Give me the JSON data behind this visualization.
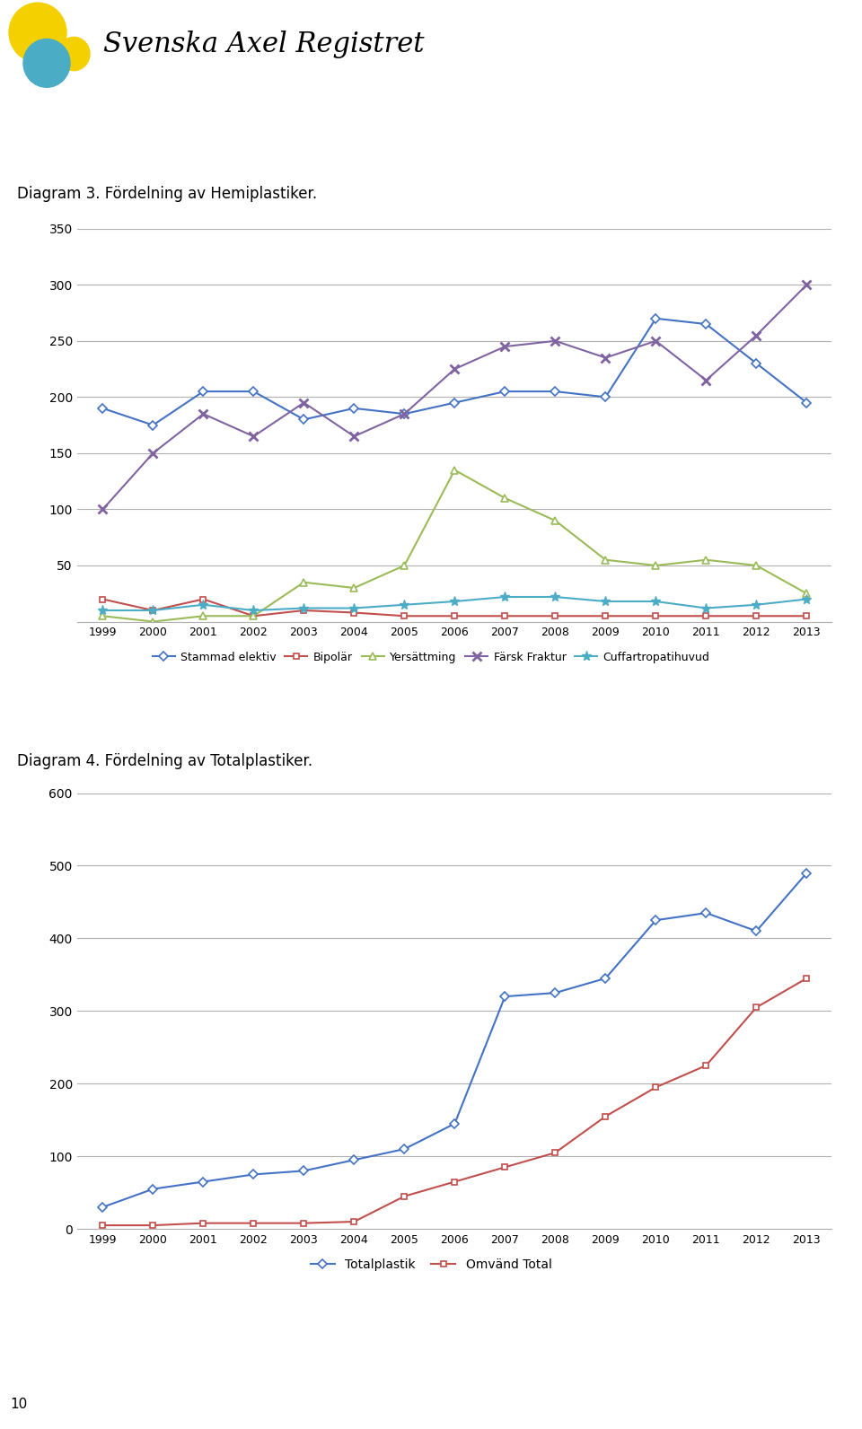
{
  "years": [
    1999,
    2000,
    2001,
    2002,
    2003,
    2004,
    2005,
    2006,
    2007,
    2008,
    2009,
    2010,
    2011,
    2012,
    2013
  ],
  "diagram3_title": "Diagram 3. Fördelning av Hemiplastiker.",
  "diagram4_title": "Diagram 4. Fördelning av Totalplastiker.",
  "header_text": "Svenska Axel Registret",
  "stammad_elektiv": [
    190,
    175,
    205,
    205,
    180,
    190,
    185,
    195,
    205,
    205,
    200,
    270,
    265,
    230,
    195
  ],
  "bipolar": [
    20,
    10,
    20,
    5,
    10,
    8,
    5,
    5,
    5,
    5,
    5,
    5,
    5,
    5,
    5
  ],
  "ytersattming": [
    5,
    0,
    5,
    5,
    35,
    30,
    50,
    135,
    110,
    90,
    55,
    50,
    55,
    50,
    25
  ],
  "farsk_fraktur": [
    100,
    150,
    185,
    165,
    195,
    165,
    185,
    225,
    245,
    250,
    235,
    250,
    215,
    255,
    300
  ],
  "cuffartropatihuvud": [
    10,
    10,
    15,
    10,
    12,
    12,
    15,
    18,
    22,
    22,
    18,
    18,
    12,
    15,
    20
  ],
  "totalplastik": [
    30,
    55,
    65,
    75,
    80,
    95,
    110,
    145,
    320,
    325,
    345,
    425,
    435,
    410,
    490
  ],
  "omvand_total": [
    5,
    5,
    8,
    8,
    8,
    10,
    45,
    65,
    85,
    105,
    155,
    195,
    225,
    305,
    345
  ],
  "stammad_color": "#4472c4",
  "bipolar_color": "#c0504d",
  "ytersattming_color": "#9bbb59",
  "farsk_color": "#8064a2",
  "cuff_color": "#4bacc6",
  "totalplastik_color": "#4472c4",
  "omvand_color": "#c0504d",
  "bg_color": "#ffffff",
  "grid_color": "#b0b0b0",
  "diagram3_ylim": [
    0,
    350
  ],
  "diagram3_yticks": [
    0,
    50,
    100,
    150,
    200,
    250,
    300,
    350
  ],
  "diagram4_ylim": [
    0,
    600
  ],
  "diagram4_yticks": [
    0,
    100,
    200,
    300,
    400,
    500,
    600
  ],
  "legend3_labels": [
    "Stammad elektiv",
    "Bipolär",
    "Yersättming",
    "Färsk Fraktur",
    "Cuffartropatihuvud"
  ],
  "legend4_labels": [
    "Totalplastik",
    "Omvänd Total"
  ],
  "page_number": "10"
}
